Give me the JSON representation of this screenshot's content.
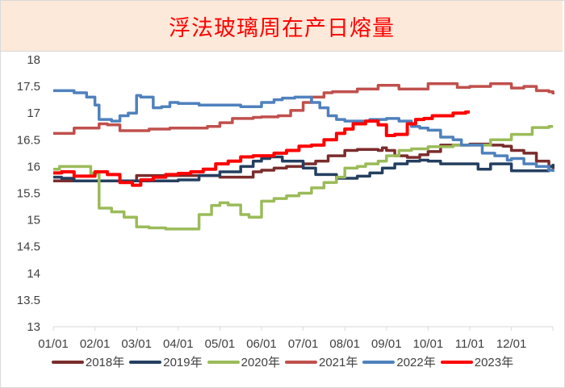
{
  "title": "浮法玻璃周在产日熔量",
  "chart_data": {
    "type": "line",
    "title": "浮法玻璃周在产日熔量",
    "xlabel": "",
    "ylabel": "",
    "x_ticks": [
      "01/01",
      "02/01",
      "03/01",
      "04/01",
      "05/01",
      "06/01",
      "07/01",
      "08/01",
      "09/01",
      "10/01",
      "11/01",
      "12/01"
    ],
    "y_ticks": [
      "18",
      "17.5",
      "17",
      "16.5",
      "16",
      "15.5",
      "15",
      "14.5",
      "14",
      "13.5",
      "13"
    ],
    "ylim": [
      13,
      18
    ],
    "grid": false,
    "legend_position": "bottom",
    "series": [
      {
        "name": "2018年",
        "color": "#7b2c2c",
        "x": [
          0,
          0.5,
          1.0,
          1.4,
          2.0,
          3.0,
          3.6,
          4.0,
          4.8,
          5.0,
          5.3,
          5.6,
          6.0,
          6.3,
          6.6,
          7.0,
          7.3,
          7.8,
          7.9,
          8.0,
          8.2,
          8.5,
          8.8,
          9.0,
          9.3,
          9.6,
          10.0,
          10.5,
          10.8,
          11.0,
          11.3,
          11.6,
          11.9,
          12.0
        ],
        "values": [
          15.73,
          15.73,
          15.73,
          15.73,
          15.83,
          15.83,
          15.83,
          15.8,
          15.9,
          15.93,
          15.97,
          16.0,
          16.05,
          16.1,
          16.2,
          16.3,
          16.32,
          16.3,
          16.35,
          16.3,
          16.2,
          16.17,
          16.22,
          16.28,
          16.4,
          16.4,
          16.42,
          16.4,
          16.38,
          16.3,
          16.25,
          16.1,
          16.0,
          15.95
        ]
      },
      {
        "name": "2019年",
        "color": "#243f60",
        "x": [
          0,
          0.2,
          0.5,
          1.0,
          1.5,
          2.0,
          2.5,
          3.0,
          3.5,
          4.0,
          4.5,
          4.8,
          5.0,
          5.2,
          5.5,
          6.0,
          6.3,
          6.8,
          7.0,
          7.3,
          7.6,
          7.9,
          8.2,
          8.5,
          8.8,
          9.0,
          9.3,
          9.6,
          9.9,
          10.2,
          10.5,
          10.8,
          11.0,
          11.5,
          11.9,
          12.0
        ],
        "values": [
          15.8,
          15.78,
          15.73,
          15.73,
          15.73,
          15.73,
          15.73,
          15.75,
          15.83,
          15.9,
          16.0,
          16.1,
          16.15,
          16.18,
          16.1,
          15.97,
          15.85,
          15.78,
          15.78,
          15.82,
          15.88,
          15.97,
          16.05,
          16.1,
          16.12,
          16.1,
          16.05,
          16.05,
          16.05,
          15.95,
          16.05,
          16.05,
          15.92,
          15.92,
          16.0,
          16.05
        ]
      },
      {
        "name": "2020年",
        "color": "#9bbb59",
        "x": [
          0,
          0.15,
          0.6,
          0.9,
          1.0,
          1.1,
          1.4,
          1.7,
          2.0,
          2.3,
          2.7,
          3.0,
          3.3,
          3.5,
          3.8,
          4.0,
          4.2,
          4.5,
          4.7,
          5.0,
          5.3,
          5.6,
          5.9,
          6.2,
          6.5,
          6.8,
          7.0,
          7.3,
          7.5,
          7.8,
          8.0,
          8.3,
          8.6,
          9.0,
          9.3,
          9.6,
          10.0,
          10.5,
          10.8,
          11.0,
          11.5,
          11.9,
          12.0
        ],
        "values": [
          15.95,
          16.0,
          16.0,
          15.87,
          15.87,
          15.22,
          15.15,
          15.05,
          14.87,
          14.85,
          14.83,
          14.83,
          14.83,
          15.1,
          15.27,
          15.32,
          15.28,
          15.1,
          15.05,
          15.35,
          15.4,
          15.45,
          15.5,
          15.6,
          15.7,
          15.8,
          15.97,
          16.0,
          16.05,
          16.1,
          16.2,
          16.3,
          16.33,
          16.37,
          16.37,
          16.4,
          16.4,
          16.5,
          16.5,
          16.6,
          16.73,
          16.75,
          16.75
        ]
      },
      {
        "name": "2021年",
        "color": "#c0504d",
        "x": [
          0,
          0.3,
          0.5,
          1.0,
          1.1,
          1.3,
          1.6,
          2.0,
          2.3,
          2.8,
          3.0,
          3.5,
          3.7,
          4.0,
          4.3,
          4.8,
          5.0,
          5.4,
          5.7,
          6.0,
          6.2,
          6.5,
          6.7,
          7.0,
          7.3,
          7.8,
          8.0,
          8.3,
          8.7,
          9.0,
          9.3,
          9.7,
          10.0,
          10.3,
          10.5,
          10.8,
          11.0,
          11.3,
          11.6,
          11.9,
          12.0
        ],
        "values": [
          16.62,
          16.62,
          16.72,
          16.72,
          16.8,
          16.78,
          16.67,
          16.67,
          16.7,
          16.72,
          16.72,
          16.72,
          16.75,
          16.82,
          16.9,
          16.92,
          16.93,
          16.95,
          17.05,
          17.2,
          17.3,
          17.38,
          17.4,
          17.4,
          17.45,
          17.52,
          17.52,
          17.45,
          17.45,
          17.55,
          17.55,
          17.48,
          17.5,
          17.5,
          17.55,
          17.55,
          17.47,
          17.5,
          17.42,
          17.4,
          17.35
        ]
      },
      {
        "name": "2022年",
        "color": "#4f81bd",
        "x": [
          0,
          0.3,
          0.5,
          0.8,
          1.0,
          1.1,
          1.4,
          1.6,
          1.8,
          2.0,
          2.1,
          2.4,
          2.6,
          2.8,
          3.0,
          3.5,
          4.0,
          4.5,
          4.8,
          5.0,
          5.3,
          5.5,
          5.8,
          6.0,
          6.2,
          6.4,
          6.6,
          6.8,
          7.0,
          7.3,
          7.6,
          8.0,
          8.3,
          8.6,
          8.8,
          9.0,
          9.3,
          9.6,
          9.8,
          10.0,
          10.3,
          10.6,
          10.9,
          11.0,
          11.3,
          11.6,
          11.9,
          12.0
        ],
        "values": [
          17.42,
          17.42,
          17.38,
          17.3,
          17.15,
          16.88,
          16.85,
          16.95,
          17.0,
          17.33,
          17.3,
          17.1,
          17.12,
          17.2,
          17.18,
          17.15,
          17.15,
          17.12,
          17.12,
          17.2,
          17.25,
          17.28,
          17.3,
          17.3,
          17.2,
          17.1,
          16.95,
          16.88,
          16.85,
          16.85,
          16.88,
          16.9,
          16.85,
          16.75,
          16.72,
          16.68,
          16.55,
          16.5,
          16.4,
          16.4,
          16.25,
          16.2,
          16.12,
          16.15,
          16.05,
          16.0,
          15.93,
          15.9
        ]
      },
      {
        "name": "2023年",
        "color": "#ff0000",
        "x": [
          0,
          0.2,
          0.5,
          0.8,
          1.0,
          1.3,
          1.6,
          1.9,
          2.1,
          2.4,
          2.7,
          3.0,
          3.3,
          3.6,
          3.9,
          4.2,
          4.5,
          4.8,
          5.0,
          5.3,
          5.6,
          5.9,
          6.2,
          6.5,
          6.8,
          7.0,
          7.2,
          7.5,
          7.8,
          8.0,
          8.2,
          8.5,
          8.7,
          8.9,
          9.1,
          9.4,
          9.6,
          9.9,
          10.0
        ],
        "values": [
          15.88,
          15.9,
          15.82,
          15.82,
          15.9,
          15.85,
          15.7,
          15.65,
          15.75,
          15.8,
          15.85,
          15.87,
          15.9,
          15.95,
          16.05,
          16.1,
          16.18,
          16.2,
          16.2,
          16.25,
          16.3,
          16.38,
          16.4,
          16.5,
          16.62,
          16.7,
          16.8,
          16.85,
          16.78,
          16.58,
          16.6,
          16.8,
          16.88,
          16.9,
          16.95,
          16.95,
          17.0,
          17.02,
          17.02
        ]
      }
    ]
  },
  "legend": {
    "items": [
      {
        "label": "2018年",
        "color": "#7b2c2c"
      },
      {
        "label": "2019年",
        "color": "#243f60"
      },
      {
        "label": "2020年",
        "color": "#9bbb59"
      },
      {
        "label": "2021年",
        "color": "#c0504d"
      },
      {
        "label": "2022年",
        "color": "#4f81bd"
      },
      {
        "label": "2023年",
        "color": "#ff0000"
      }
    ]
  }
}
